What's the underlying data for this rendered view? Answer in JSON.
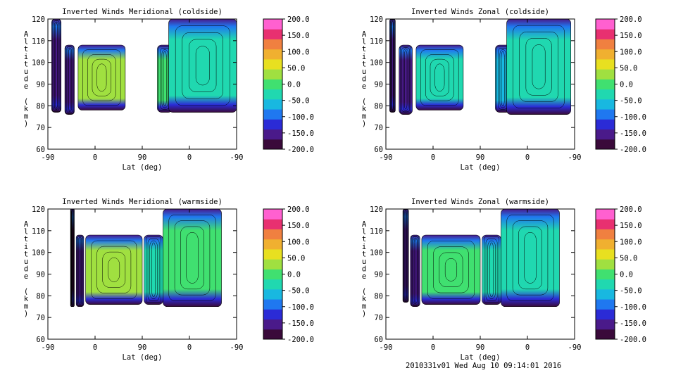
{
  "footer": "2010331v01 Wed Aug 10 09:14:01 2016",
  "colorbar": {
    "min": -200,
    "max": 200,
    "labels": [
      "200.0",
      "150.0",
      "100.0",
      "50.0",
      "0.0",
      "-50.0",
      "-100.0",
      "-150.0",
      "-200.0"
    ],
    "stops": [
      "#3a0a3a",
      "#4a1a8a",
      "#2b2bd6",
      "#1f78f0",
      "#18b8e0",
      "#20d8b0",
      "#40e070",
      "#a0e040",
      "#e8e020",
      "#f0b030",
      "#f08040",
      "#e83070",
      "#ff60d0"
    ]
  },
  "chart_data": [
    {
      "type": "heatmap",
      "title": "Inverted Winds Meridional (coldside)",
      "xlabel": "Lat (deg)",
      "ylabel": "Altitude (km)",
      "xticks": [
        "-90",
        "0",
        "90",
        "0",
        "-90"
      ],
      "yticks": [
        "60",
        "70",
        "80",
        "90",
        "100",
        "110",
        "120"
      ],
      "ylim": [
        60,
        120
      ],
      "blocks": [
        {
          "x0": 0.02,
          "x1": 0.07,
          "alt0": 77,
          "alt1": 120,
          "value": -180
        },
        {
          "x0": 0.09,
          "x1": 0.14,
          "alt0": 76,
          "alt1": 108,
          "value": -170
        },
        {
          "x0": 0.16,
          "x1": 0.41,
          "alt0": 78,
          "alt1": 108,
          "value": 20
        },
        {
          "x0": 0.58,
          "x1": 0.66,
          "alt0": 77,
          "alt1": 108,
          "value": 0
        },
        {
          "x0": 0.64,
          "x1": 1.0,
          "alt0": 77,
          "alt1": 120,
          "value": -20
        }
      ]
    },
    {
      "type": "heatmap",
      "title": "Inverted Winds Zonal (coldside)",
      "xlabel": "Lat (deg)",
      "ylabel": "Altitude (km)",
      "xticks": [
        "-90",
        "0",
        "90",
        "0",
        "-90"
      ],
      "yticks": [
        "60",
        "70",
        "80",
        "90",
        "100",
        "110",
        "120"
      ],
      "ylim": [
        60,
        120
      ],
      "blocks": [
        {
          "x0": 0.02,
          "x1": 0.05,
          "alt0": 77,
          "alt1": 120,
          "value": -160
        },
        {
          "x0": 0.07,
          "x1": 0.14,
          "alt0": 76,
          "alt1": 108,
          "value": -170
        },
        {
          "x0": 0.16,
          "x1": 0.41,
          "alt0": 78,
          "alt1": 108,
          "value": -30
        },
        {
          "x0": 0.58,
          "x1": 0.66,
          "alt0": 77,
          "alt1": 108,
          "value": -60
        },
        {
          "x0": 0.64,
          "x1": 0.98,
          "alt0": 76,
          "alt1": 120,
          "value": -20
        }
      ]
    },
    {
      "type": "heatmap",
      "title": "Inverted Winds Meridional (warmside)",
      "xlabel": "Lat (deg)",
      "ylabel": "Altitude (km)",
      "xticks": [
        "-90",
        "0",
        "90",
        "0",
        "-90"
      ],
      "yticks": [
        "60",
        "70",
        "80",
        "90",
        "100",
        "110",
        "120"
      ],
      "ylim": [
        60,
        120
      ],
      "blocks": [
        {
          "x0": 0.12,
          "x1": 0.14,
          "alt0": 75,
          "alt1": 120,
          "value": -190
        },
        {
          "x0": 0.15,
          "x1": 0.19,
          "alt0": 75,
          "alt1": 108,
          "value": -170
        },
        {
          "x0": 0.2,
          "x1": 0.5,
          "alt0": 76,
          "alt1": 108,
          "value": 20
        },
        {
          "x0": 0.51,
          "x1": 0.61,
          "alt0": 76,
          "alt1": 108,
          "value": -20
        },
        {
          "x0": 0.61,
          "x1": 0.92,
          "alt0": 75,
          "alt1": 120,
          "value": -10
        }
      ]
    },
    {
      "type": "heatmap",
      "title": "Inverted Winds Zonal (warmside)",
      "xlabel": "Lat (deg)",
      "ylabel": "Altitude (km)",
      "xticks": [
        "-90",
        "0",
        "90",
        "0",
        "-90"
      ],
      "yticks": [
        "60",
        "70",
        "80",
        "90",
        "100",
        "110",
        "120"
      ],
      "ylim": [
        60,
        120
      ],
      "blocks": [
        {
          "x0": 0.09,
          "x1": 0.12,
          "alt0": 77,
          "alt1": 120,
          "value": -160
        },
        {
          "x0": 0.13,
          "x1": 0.18,
          "alt0": 75,
          "alt1": 108,
          "value": -170
        },
        {
          "x0": 0.19,
          "x1": 0.5,
          "alt0": 76,
          "alt1": 108,
          "value": -10
        },
        {
          "x0": 0.51,
          "x1": 0.61,
          "alt0": 76,
          "alt1": 108,
          "value": -40
        },
        {
          "x0": 0.61,
          "x1": 0.92,
          "alt0": 75,
          "alt1": 120,
          "value": -20
        }
      ]
    }
  ]
}
